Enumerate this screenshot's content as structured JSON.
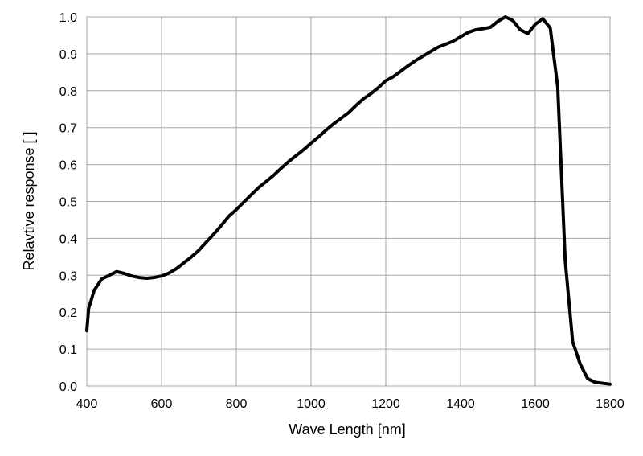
{
  "chart_data": {
    "type": "line",
    "title": "",
    "xlabel": "Wave Length [nm]",
    "ylabel": "Relavtive response [ ]",
    "xlim": [
      400,
      1800
    ],
    "ylim": [
      0.0,
      1.0
    ],
    "x_ticks": [
      400,
      600,
      800,
      1000,
      1200,
      1400,
      1600,
      1800
    ],
    "y_ticks": [
      0.0,
      0.1,
      0.2,
      0.3,
      0.4,
      0.5,
      0.6,
      0.7,
      0.8,
      0.9,
      1.0
    ],
    "x_tick_labels": [
      "400",
      "600",
      "800",
      "1000",
      "1200",
      "1400",
      "1600",
      "1800"
    ],
    "y_tick_labels": [
      "0.0",
      "0.1",
      "0.2",
      "0.3",
      "0.4",
      "0.5",
      "0.6",
      "0.7",
      "0.8",
      "0.9",
      "1.0"
    ],
    "grid": true,
    "legend": "none",
    "line_color": "#000000",
    "grid_color": "#a6a6a6",
    "series": [
      {
        "x": [
          400,
          405,
          420,
          440,
          460,
          480,
          500,
          520,
          540,
          560,
          580,
          600,
          620,
          640,
          660,
          680,
          700,
          720,
          740,
          760,
          780,
          800,
          820,
          840,
          860,
          880,
          900,
          920,
          940,
          960,
          980,
          1000,
          1020,
          1040,
          1060,
          1080,
          1100,
          1120,
          1140,
          1160,
          1180,
          1200,
          1220,
          1240,
          1260,
          1280,
          1300,
          1320,
          1340,
          1360,
          1380,
          1400,
          1420,
          1440,
          1460,
          1480,
          1500,
          1520,
          1540,
          1560,
          1580,
          1600,
          1620,
          1640,
          1660,
          1680,
          1700,
          1720,
          1740,
          1760,
          1800
        ],
        "y": [
          0.15,
          0.21,
          0.26,
          0.29,
          0.3,
          0.31,
          0.305,
          0.298,
          0.294,
          0.292,
          0.294,
          0.298,
          0.306,
          0.318,
          0.334,
          0.35,
          0.368,
          0.39,
          0.412,
          0.435,
          0.46,
          0.478,
          0.498,
          0.518,
          0.538,
          0.554,
          0.571,
          0.59,
          0.608,
          0.624,
          0.64,
          0.658,
          0.675,
          0.693,
          0.71,
          0.725,
          0.74,
          0.76,
          0.778,
          0.792,
          0.808,
          0.827,
          0.838,
          0.853,
          0.868,
          0.882,
          0.894,
          0.906,
          0.918,
          0.926,
          0.934,
          0.946,
          0.958,
          0.965,
          0.968,
          0.972,
          0.988,
          1.0,
          0.99,
          0.965,
          0.955,
          0.98,
          0.995,
          0.97,
          0.81,
          0.34,
          0.12,
          0.06,
          0.02,
          0.01,
          0.005
        ]
      }
    ]
  }
}
